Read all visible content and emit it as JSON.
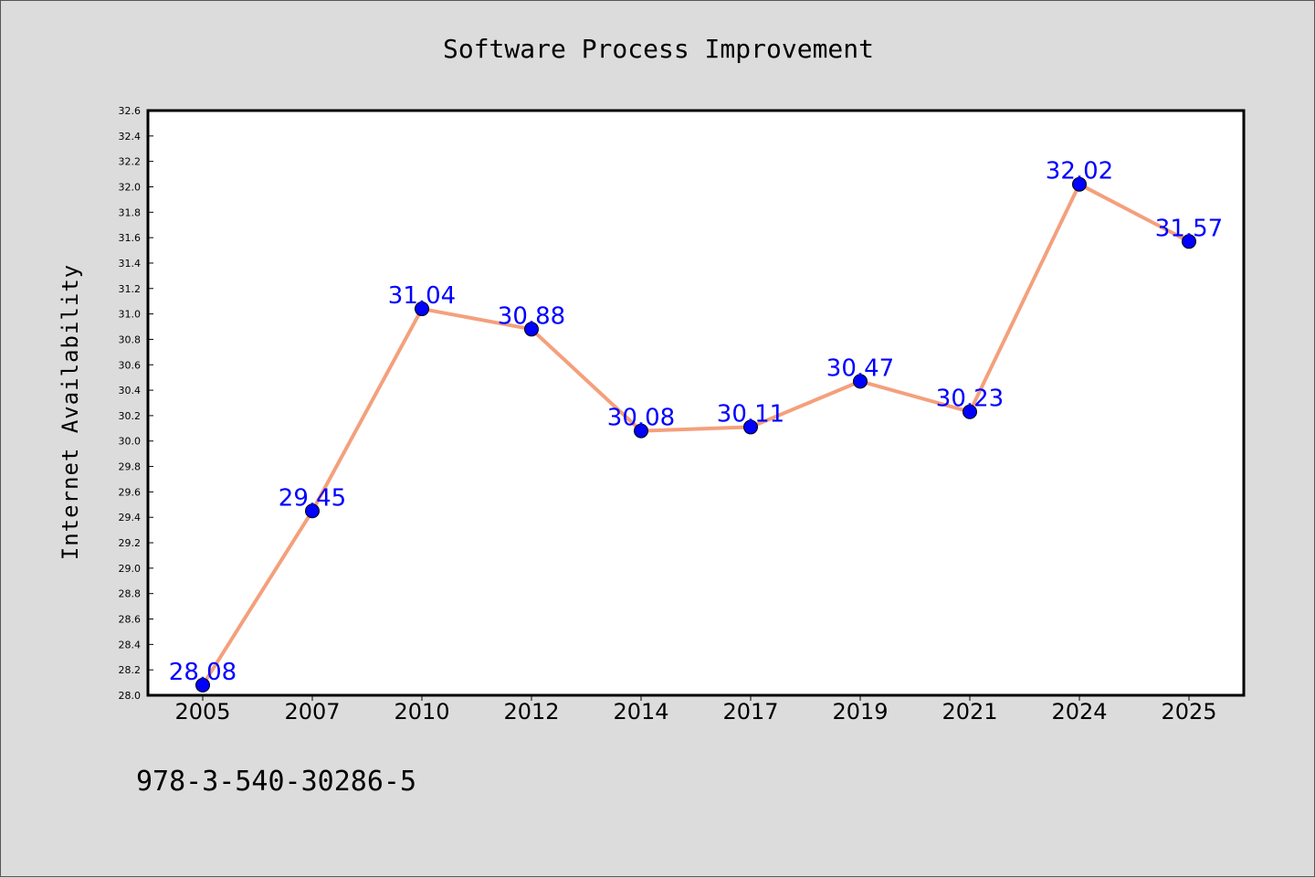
{
  "chart_data": {
    "type": "line",
    "title": "Software Process Improvement",
    "xlabel": "",
    "ylabel": "Internet Availability",
    "categories": [
      "2005",
      "2007",
      "2010",
      "2012",
      "2014",
      "2017",
      "2019",
      "2021",
      "2024",
      "2025"
    ],
    "series": [
      {
        "values": [
          28.08,
          29.45,
          31.04,
          30.88,
          30.08,
          30.11,
          30.47,
          30.23,
          32.02,
          31.57
        ],
        "data_labels": [
          "28.08",
          "29.45",
          "31.04",
          "30.88",
          "30.08",
          "30.11",
          "30.47",
          "30.23",
          "32.02",
          "31.57"
        ],
        "line_color": "#f4a07c",
        "marker_color": "#0000ff"
      }
    ],
    "ylim": [
      28.0,
      32.6
    ],
    "yticks": [
      "28.0",
      "28.2",
      "28.4",
      "28.6",
      "28.8",
      "29.0",
      "29.2",
      "29.4",
      "29.6",
      "29.8",
      "30.0",
      "30.2",
      "30.4",
      "30.6",
      "30.8",
      "31.0",
      "31.2",
      "31.4",
      "31.6",
      "31.8",
      "32.0",
      "32.2",
      "32.4",
      "32.6"
    ],
    "grid": false,
    "legend": "none"
  },
  "annotation": "978-3-540-30286-5",
  "colors": {
    "background": "#dcdcdc",
    "plot_background": "#ffffff",
    "line": "#f4a07c",
    "marker": "#0000ff",
    "data_label": "#0000ff"
  }
}
